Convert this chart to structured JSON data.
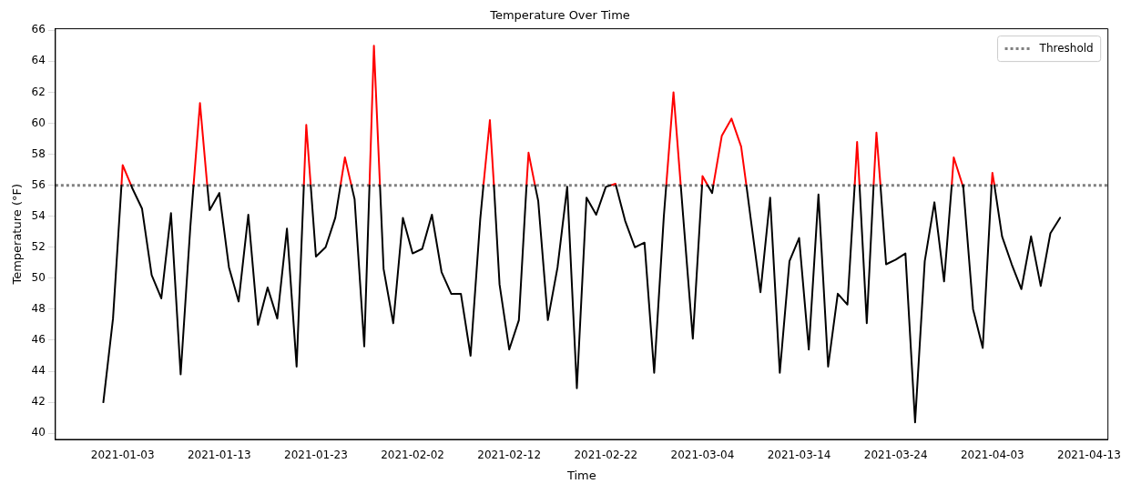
{
  "chart_data": {
    "type": "line",
    "title": "Temperature Over Time",
    "xlabel": "Time",
    "ylabel": "Temperature (°F)",
    "series": [
      {
        "color": "#000000",
        "x": [
          "2021-01-01",
          "2021-01-02",
          "2021-01-02T21:00",
          "2021-01-03",
          "2021-01-03T21:00",
          "2021-01-04",
          "2021-01-05",
          "2021-01-06",
          "2021-01-07",
          "2021-01-08",
          "2021-01-09",
          "2021-01-10",
          "2021-01-10T08:00",
          "2021-01-11",
          "2021-01-11T18:00",
          "2021-01-12",
          "2021-01-13",
          "2021-01-14",
          "2021-01-15",
          "2021-01-16",
          "2021-01-17",
          "2021-01-18",
          "2021-01-19",
          "2021-01-20",
          "2021-01-21",
          "2021-01-21T18:00",
          "2021-01-22",
          "2021-01-22T11:00",
          "2021-01-23",
          "2021-01-24",
          "2021-01-25",
          "2021-01-25T13:00",
          "2021-01-26",
          "2021-01-26T16:00",
          "2021-01-27",
          "2021-01-28",
          "2021-01-28T13:00",
          "2021-01-29",
          "2021-01-29T15:00",
          "2021-01-30",
          "2021-01-31",
          "2021-02-01",
          "2021-02-02",
          "2021-02-03",
          "2021-02-04",
          "2021-02-05",
          "2021-02-06",
          "2021-02-07",
          "2021-02-08",
          "2021-02-09",
          "2021-02-09T08:00",
          "2021-02-10",
          "2021-02-10T10:00",
          "2021-02-11",
          "2021-02-12",
          "2021-02-13",
          "2021-02-13T19:00",
          "2021-02-14",
          "2021-02-14T16:00",
          "2021-02-15",
          "2021-02-16",
          "2021-02-17",
          "2021-02-18",
          "2021-02-19",
          "2021-02-20",
          "2021-02-21",
          "2021-02-22",
          "2021-02-22T12:00",
          "2021-02-23",
          "2021-02-23T01:00",
          "2021-02-24",
          "2021-02-25",
          "2021-02-26",
          "2021-02-27",
          "2021-02-28",
          "2021-02-28T06:00",
          "2021-03-01",
          "2021-03-01T18:00",
          "2021-03-02",
          "2021-03-03",
          "2021-03-03T23:00",
          "2021-03-04",
          "2021-03-04T13:00",
          "2021-03-05",
          "2021-03-05T03:00",
          "2021-03-06",
          "2021-03-08T13:00",
          "2021-03-09",
          "2021-03-10",
          "2021-03-11",
          "2021-03-12",
          "2021-03-13",
          "2021-03-14",
          "2021-03-15",
          "2021-03-16",
          "2021-03-17",
          "2021-03-18",
          "2021-03-19",
          "2021-03-19T18:00",
          "2021-03-20",
          "2021-03-20T06:00",
          "2021-03-21",
          "2021-03-21T17:00",
          "2021-03-22",
          "2021-03-22T10:00",
          "2021-03-23",
          "2021-03-24",
          "2021-03-25",
          "2021-03-26",
          "2021-03-27",
          "2021-03-28",
          "2021-03-29",
          "2021-03-29T19:00",
          "2021-03-30",
          "2021-03-30T22:00",
          "2021-03-31",
          "2021-04-01",
          "2021-04-02",
          "2021-04-02T22:00",
          "2021-04-03",
          "2021-04-03T05:00",
          "2021-04-04",
          "2021-04-05",
          "2021-04-06",
          "2021-04-07",
          "2021-04-08",
          "2021-04-09",
          "2021-04-10"
        ],
        "values": [
          42.0,
          47.4,
          56,
          null,
          56,
          55.8,
          54.5,
          50.2,
          48.7,
          54.2,
          43.8,
          53.3,
          56,
          null,
          56,
          54.4,
          55.5,
          50.7,
          48.5,
          54.1,
          47.0,
          49.4,
          47.4,
          53.2,
          44.3,
          56,
          null,
          56,
          51.4,
          52.0,
          53.9,
          56,
          null,
          56,
          55.1,
          45.6,
          56,
          null,
          56,
          50.6,
          47.1,
          53.9,
          51.6,
          51.9,
          54.1,
          50.4,
          49.0,
          49.0,
          45.0,
          53.8,
          56,
          null,
          56,
          49.6,
          45.4,
          47.3,
          56,
          null,
          56,
          55.0,
          47.3,
          50.7,
          55.9,
          42.9,
          55.2,
          54.1,
          55.9,
          56,
          null,
          56,
          53.7,
          52.0,
          52.3,
          43.9,
          54.0,
          56,
          null,
          56,
          54.0,
          46.1,
          56,
          null,
          56,
          55.5,
          56,
          null,
          56,
          53.8,
          49.1,
          55.2,
          43.9,
          51.1,
          52.6,
          45.4,
          55.4,
          44.3,
          49.0,
          48.3,
          56,
          null,
          56,
          47.1,
          56,
          null,
          56,
          50.9,
          51.2,
          51.6,
          40.7,
          51.1,
          54.9,
          49.8,
          56,
          null,
          56,
          55.8,
          48.0,
          45.5,
          56,
          null,
          56,
          52.7,
          50.9,
          49.3,
          52.7,
          49.5,
          52.9,
          53.9
        ]
      },
      {
        "color": "#ff0000",
        "x": [
          "2021-01-02T21:00",
          "2021-01-03",
          "2021-01-03T21:00",
          "2021-01-04",
          "2021-01-10T08:00",
          "2021-01-11",
          "2021-01-11T18:00",
          "2021-01-12",
          "2021-01-21T18:00",
          "2021-01-22",
          "2021-01-22T11:00",
          "2021-01-23",
          "2021-01-25T13:00",
          "2021-01-26",
          "2021-01-26T16:00",
          "2021-01-27",
          "2021-01-28T13:00",
          "2021-01-29",
          "2021-01-29T15:00",
          "2021-01-30",
          "2021-02-09T08:00",
          "2021-02-10",
          "2021-02-10T10:00",
          "2021-02-11",
          "2021-02-13T19:00",
          "2021-02-14",
          "2021-02-14T16:00",
          "2021-02-15",
          "2021-02-22T12:00",
          "2021-02-23",
          "2021-02-23T01:00",
          "2021-02-24",
          "2021-02-28T06:00",
          "2021-03-01",
          "2021-03-01T18:00",
          "2021-03-02",
          "2021-03-03T23:00",
          "2021-03-04",
          "2021-03-04T13:00",
          "2021-03-04T20:00",
          "2021-03-05T03:00",
          "2021-03-06",
          "2021-03-07",
          "2021-03-08",
          "2021-03-08T13:00",
          "2021-03-09",
          "2021-03-19T18:00",
          "2021-03-20",
          "2021-03-20T06:00",
          "2021-03-21",
          "2021-03-21T17:00",
          "2021-03-22",
          "2021-03-22T10:00",
          "2021-03-23",
          "2021-03-29T19:00",
          "2021-03-30",
          "2021-03-30T22:00",
          "2021-03-31",
          "2021-04-02T22:00",
          "2021-04-03",
          "2021-04-03T05:00"
        ],
        "values": [
          56,
          57.3,
          56,
          null,
          56,
          61.3,
          56,
          null,
          56,
          59.9,
          56,
          null,
          56,
          57.8,
          56,
          null,
          56,
          65.0,
          56,
          null,
          56,
          60.2,
          56,
          null,
          56,
          58.1,
          56,
          null,
          56,
          56.1,
          56,
          null,
          56,
          62.0,
          56,
          null,
          56,
          56.6,
          56,
          null,
          56,
          59.2,
          60.3,
          58.5,
          56,
          null,
          56,
          58.8,
          56,
          null,
          56,
          59.4,
          56,
          null,
          56,
          57.8,
          56,
          null,
          56,
          56.8,
          56
        ]
      }
    ],
    "ref_lines": [
      {
        "axis": "y",
        "value": 56,
        "label": "Threshold",
        "color": "#808080",
        "line_style": "dotted"
      }
    ],
    "xlim": [
      "2020-12-27T01:00",
      "2021-04-14T23:00"
    ],
    "xticks": [
      "2021-01-03",
      "2021-01-13",
      "2021-01-23",
      "2021-02-02",
      "2021-02-12",
      "2021-02-22",
      "2021-03-04",
      "2021-03-14",
      "2021-03-24",
      "2021-04-03",
      "2021-04-13"
    ],
    "ylim": [
      39.6,
      66.1
    ],
    "yticks": [
      40,
      42,
      44,
      46,
      48,
      50,
      52,
      54,
      56,
      58,
      60,
      62,
      64,
      66
    ],
    "legend": "top right",
    "grid": false,
    "marker": "none",
    "line_style": "solid"
  }
}
